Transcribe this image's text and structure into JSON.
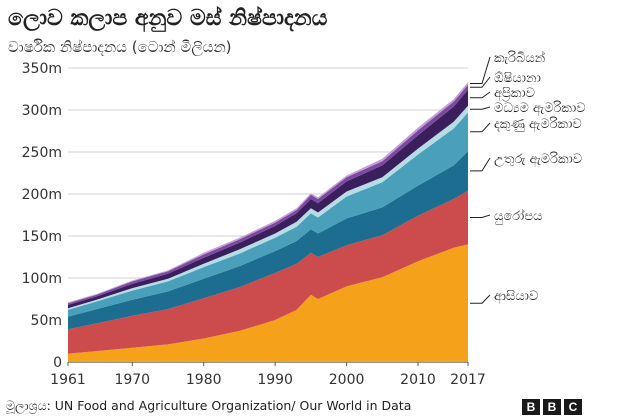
{
  "header": {
    "title": "ලොව කලාප අනුව මස් නිෂ්පාදනය",
    "subtitle": "වාර්ෂික නිෂ්පාදනය (ටොන් මිලියන)"
  },
  "footer": {
    "source": "මූලාශ්‍රය: UN Food and Agriculture Organization/ Our World in Data",
    "brand_letters": [
      "B",
      "B",
      "C"
    ]
  },
  "chart_data": {
    "type": "area",
    "stacked": true,
    "x": [
      1961,
      1965,
      1970,
      1975,
      1980,
      1985,
      1990,
      1993,
      1995,
      1996,
      2000,
      2005,
      2010,
      2015,
      2017
    ],
    "x_ticks": [
      1961,
      1970,
      1980,
      1990,
      2000,
      2010,
      2017
    ],
    "y_ticks": [
      0,
      50,
      100,
      150,
      200,
      250,
      300,
      350
    ],
    "y_tick_labels": [
      "0",
      "50m",
      "100m",
      "150m",
      "200m",
      "250m",
      "300m",
      "350m"
    ],
    "ylim": [
      0,
      350
    ],
    "xlim": [
      1961,
      2017
    ],
    "grid": "horizontal",
    "legend": "right, labels beside series ends",
    "series": [
      {
        "name": "ආසියාව",
        "color": "#f5a11a",
        "values": [
          10,
          13,
          17,
          21,
          28,
          37,
          50,
          62,
          80,
          75,
          90,
          101,
          120,
          136,
          140
        ]
      },
      {
        "name": "යුරෝපය",
        "color": "#cc4c4e",
        "values": [
          29,
          33,
          38,
          42,
          48,
          52,
          56,
          55,
          50,
          50,
          49,
          50,
          54,
          58,
          64
        ]
      },
      {
        "name": "උතුරු ඇමරිකාව",
        "color": "#1c6d8f",
        "values": [
          15,
          17,
          19,
          21,
          23,
          25,
          26,
          27,
          28,
          28,
          32,
          33,
          36,
          40,
          47
        ]
      },
      {
        "name": "දකුණු ඇමරිකාව",
        "color": "#4aa0bb",
        "values": [
          8,
          9,
          11,
          12,
          14,
          15,
          16,
          17,
          19,
          19,
          26,
          30,
          37,
          44,
          46
        ]
      },
      {
        "name": "මධ්‍යම ඇමරිකාව",
        "color": "#b8dce6",
        "values": [
          2,
          2,
          3,
          3,
          4,
          5,
          5,
          6,
          6,
          6,
          6,
          6,
          7,
          8,
          8
        ]
      },
      {
        "name": "අප්‍රිකාව",
        "color": "#3b1f5c",
        "values": [
          4,
          4,
          5,
          6,
          7,
          8,
          9,
          10,
          11,
          11,
          12,
          14,
          16,
          18,
          19
        ]
      },
      {
        "name": "ඕෂියානා",
        "color": "#7a4a9e",
        "values": [
          2,
          2,
          3,
          3,
          4,
          4,
          4,
          4,
          5,
          5,
          5,
          5,
          6,
          6,
          6
        ]
      },
      {
        "name": "කැරිබියන්",
        "color": "#c79bdb",
        "values": [
          1,
          1,
          1,
          1,
          2,
          2,
          2,
          2,
          2,
          2,
          2,
          3,
          3,
          3,
          3
        ]
      }
    ]
  }
}
